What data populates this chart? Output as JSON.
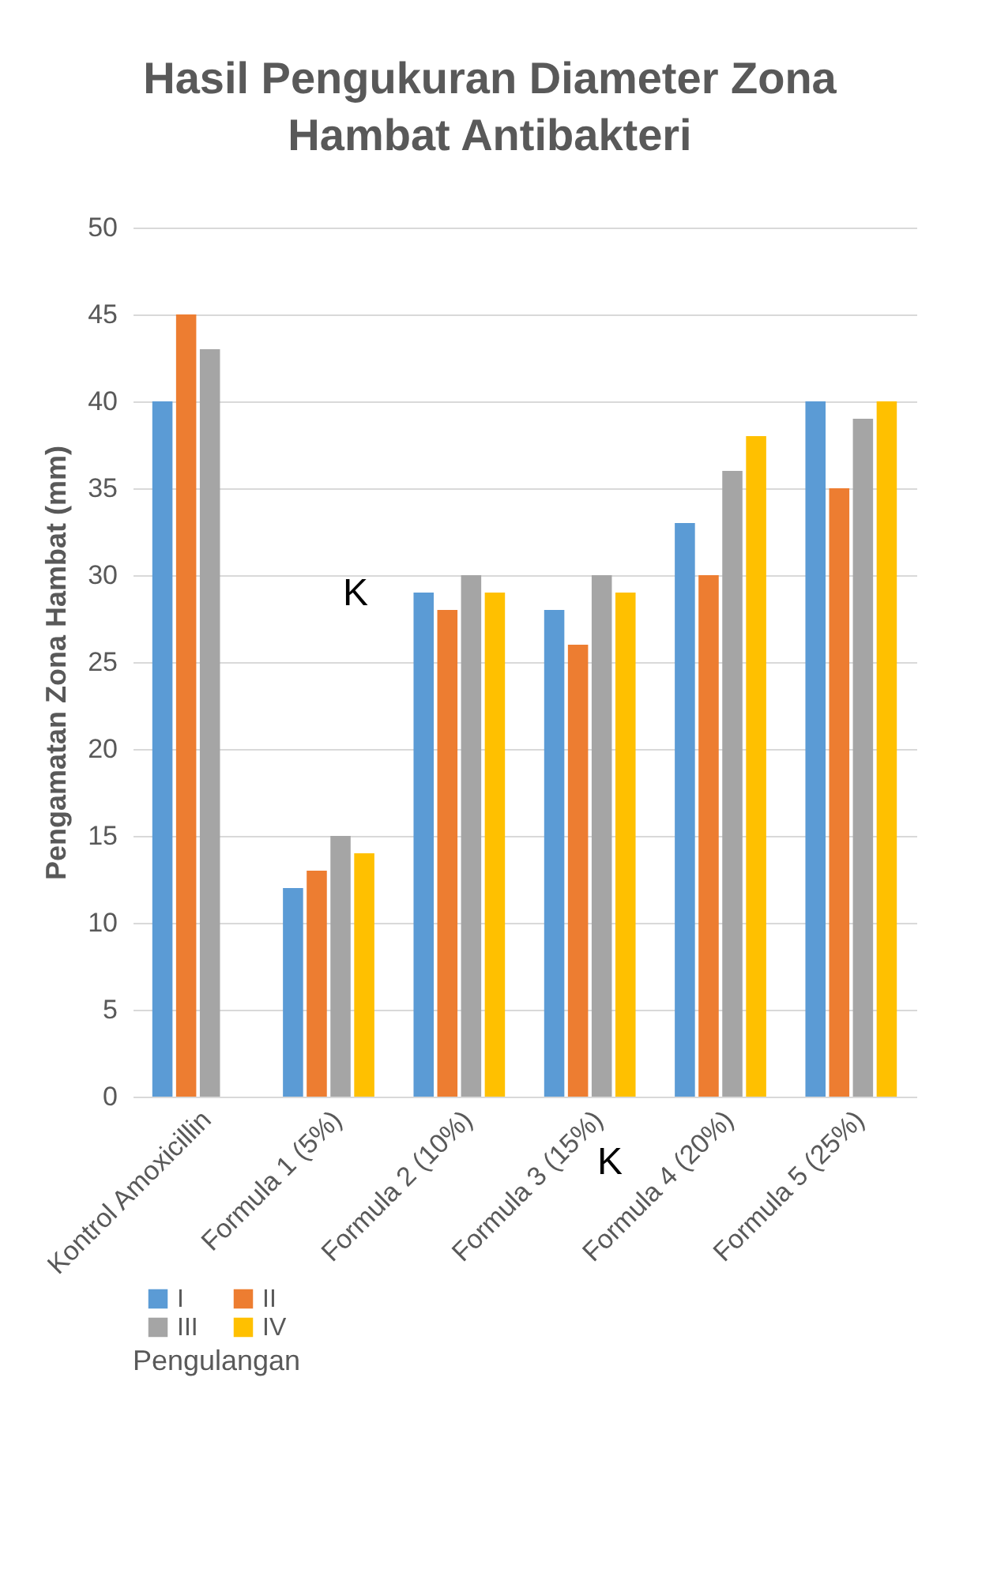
{
  "chart_data": {
    "type": "bar",
    "title": "Hasil Pengukuran Diameter Zona Hambat Antibakteri",
    "ylabel": "Pengamatan Zona Hambat (mm)",
    "legend_title": "Pengulangan",
    "legend": "bottom",
    "grid": "y",
    "categories": [
      "Kontrol Amoxicillin",
      "Formula 1 (5%)",
      "Formula 2 (10%)",
      "Formula 3 (15%)",
      "Formula 4 (20%)",
      "Formula 5 (25%)"
    ],
    "ylim": [
      0,
      50
    ],
    "yticks": [
      0,
      5,
      10,
      15,
      20,
      25,
      30,
      35,
      40,
      45,
      50
    ],
    "series": [
      {
        "name": "I",
        "color": "#5b9bd5",
        "values": [
          40,
          12,
          29,
          28,
          33,
          40
        ]
      },
      {
        "name": "II",
        "color": "#ed7d31",
        "values": [
          45,
          13,
          28,
          26,
          30,
          35
        ]
      },
      {
        "name": "III",
        "color": "#a5a5a5",
        "values": [
          43,
          15,
          30,
          30,
          36,
          39
        ]
      },
      {
        "name": "IV",
        "color": "#ffc000",
        "values": [
          null,
          14,
          29,
          29,
          38,
          40
        ]
      }
    ],
    "annotations": [
      "K",
      "K"
    ]
  }
}
